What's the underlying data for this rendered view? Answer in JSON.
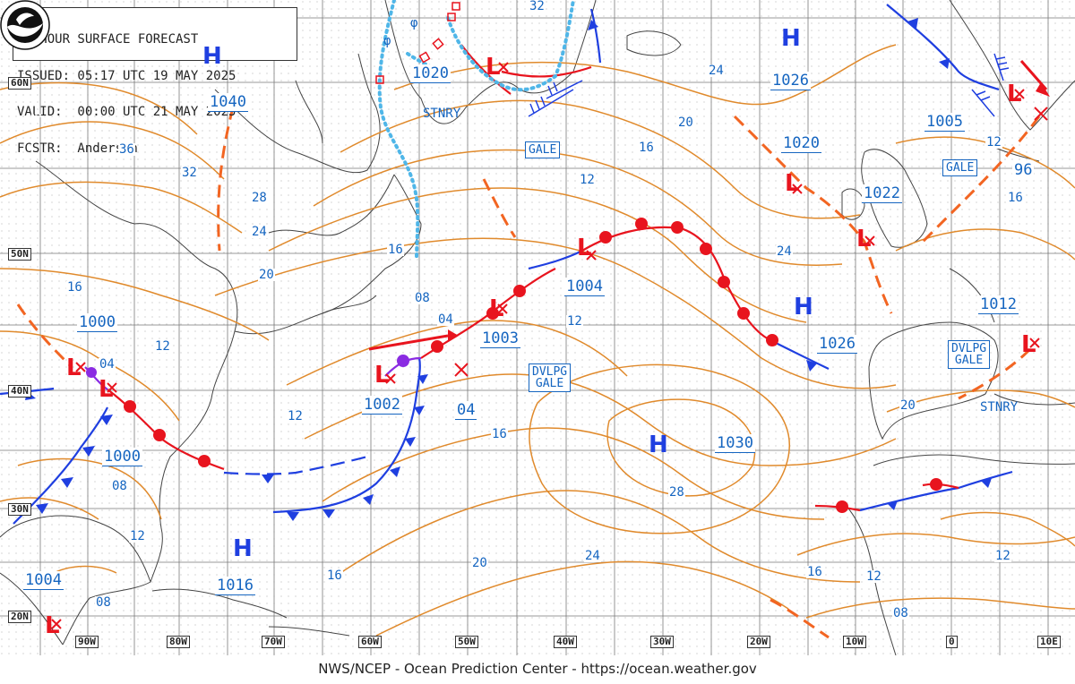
{
  "header": {
    "line1": "48-HOUR SURFACE FORECAST",
    "line2": "ISSUED: 05:17 UTC 19 MAY 2025",
    "line3": "VALID:  00:00 UTC 21 MAY 2025",
    "line4": "FCSTR:  Anderson"
  },
  "footer": "NWS/NCEP - Ocean Prediction Center - https://ocean.weather.gov",
  "logo_text": "NOAA",
  "latitudes": [
    "60N",
    "50N",
    "40N",
    "30N",
    "20N"
  ],
  "longitudes": [
    "90W",
    "80W",
    "70W",
    "60W",
    "50W",
    "40W",
    "30W",
    "20W",
    "10W",
    "0",
    "10E"
  ],
  "highs": [
    "H",
    "H",
    "H",
    "H",
    "H"
  ],
  "lows": [
    "L",
    "L",
    "L",
    "L",
    "L",
    "L",
    "L",
    "L",
    "L",
    "L",
    "L"
  ],
  "pressures": {
    "p1040": "1040",
    "p1020a": "1020",
    "p1026a": "1026",
    "p1020b": "1020",
    "p1005": "1005",
    "p1022": "1022",
    "p96": "96",
    "p1000a": "1000",
    "p1004a": "1004",
    "p1003": "1003",
    "p1012": "1012",
    "p1026b": "1026",
    "p1002": "1002",
    "p04a": "04",
    "p1030": "1030",
    "p1000b": "1000",
    "p1016": "1016",
    "p1004b": "1004"
  },
  "isobar_labels": [
    "32",
    "24",
    "20",
    "16",
    "12",
    "36",
    "32",
    "28",
    "24",
    "20",
    "16",
    "12",
    "04",
    "08",
    "04",
    "12",
    "16",
    "24",
    "12",
    "08",
    "12",
    "16",
    "20",
    "24",
    "28",
    "16",
    "20",
    "16",
    "12",
    "08",
    "12",
    "16",
    "12",
    "08"
  ],
  "boxes": {
    "gale1": "GALE",
    "gale2": "GALE",
    "dvlpg1_l1": "DVLPG",
    "dvlpg1_l2": "GALE",
    "dvlpg2_l1": "DVLPG",
    "dvlpg2_l2": "GALE"
  },
  "words": {
    "stnry1": "STNRY",
    "stnry2": "STNRY"
  },
  "colors": {
    "isobar": "#e08a2c",
    "cold_front": "#1f3fe0",
    "warm_front": "#e8141e",
    "occluded": "#8a2be2",
    "trough": "#f26522",
    "ice": "#4fb6e8",
    "label": "#1565c0",
    "grid": "#555555",
    "coast": "#444444"
  }
}
